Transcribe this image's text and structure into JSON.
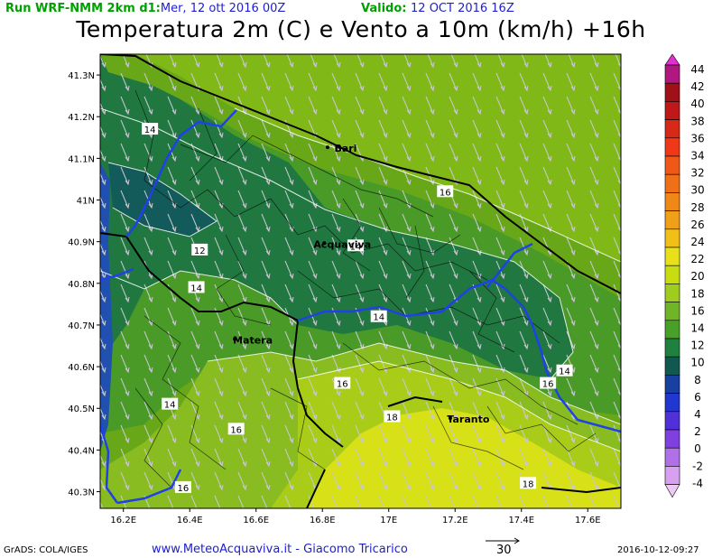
{
  "header": {
    "run_label": "Run WRF-NMM 2km d1:",
    "run_date": "Mer, 12 ott 2016 00Z",
    "valid_label": "Valido:",
    "valid_date": "12 OCT 2016 16Z"
  },
  "title": "Temperatura 2m (C) e Vento a 10m (km/h) +16h",
  "axes": {
    "x_ticks": [
      "16.2E",
      "16.4E",
      "16.6E",
      "16.8E",
      "17E",
      "17.2E",
      "17.4E",
      "17.6E"
    ],
    "y_ticks": [
      "41.3N",
      "41.2N",
      "41.1N",
      "41N",
      "40.9N",
      "40.8N",
      "40.7N",
      "40.6N",
      "40.5N",
      "40.4N",
      "40.3N"
    ]
  },
  "colorbar": {
    "labels": [
      "44",
      "42",
      "40",
      "38",
      "36",
      "34",
      "32",
      "30",
      "28",
      "26",
      "24",
      "22",
      "20",
      "18",
      "16",
      "14",
      "12",
      "10",
      "8",
      "6",
      "4",
      "2",
      "0",
      "-2",
      "-4"
    ],
    "colors": [
      "#e030d0",
      "#b01880",
      "#a01018",
      "#c01818",
      "#d82818",
      "#f03818",
      "#f05818",
      "#f07018",
      "#f08818",
      "#f0a018",
      "#f0c018",
      "#e8e018",
      "#c8dc10",
      "#a0cc20",
      "#70b428",
      "#48a028",
      "#208040",
      "#105850",
      "#1840a0",
      "#2038d0",
      "#5030d8",
      "#8040e0",
      "#b070e8",
      "#d8a0f0",
      "#f0c8f8"
    ]
  },
  "chart_data": {
    "type": "heatmap",
    "title": "Temperatura 2m (C) e Vento a 10m (km/h) +16h",
    "xlabel": "",
    "ylabel": "",
    "xlim": [
      16.13,
      17.7
    ],
    "ylim": [
      40.26,
      41.35
    ],
    "contour_labels": [
      {
        "value": "14",
        "lon": 16.28,
        "lat": 41.17
      },
      {
        "value": "12",
        "lon": 16.43,
        "lat": 40.88
      },
      {
        "value": "14",
        "lon": 16.42,
        "lat": 40.79
      },
      {
        "value": "14",
        "lon": 16.9,
        "lat": 40.89
      },
      {
        "value": "14",
        "lon": 16.97,
        "lat": 40.72
      },
      {
        "value": "16",
        "lon": 17.17,
        "lat": 41.02
      },
      {
        "value": "16",
        "lon": 16.86,
        "lat": 40.56
      },
      {
        "value": "14",
        "lon": 16.34,
        "lat": 40.51
      },
      {
        "value": "16",
        "lon": 16.54,
        "lat": 40.45
      },
      {
        "value": "14",
        "lon": 17.53,
        "lat": 40.59
      },
      {
        "value": "16",
        "lon": 17.48,
        "lat": 40.56
      },
      {
        "value": "18",
        "lon": 17.01,
        "lat": 40.48
      },
      {
        "value": "16",
        "lon": 16.38,
        "lat": 40.31
      },
      {
        "value": "18",
        "lon": 17.42,
        "lat": 40.32
      }
    ],
    "cities": [
      {
        "name": "Bari",
        "lon": 16.87,
        "lat": 41.12
      },
      {
        "name": "Acquaviva",
        "lon": 16.86,
        "lat": 40.89
      },
      {
        "name": "Matera",
        "lon": 16.59,
        "lat": 40.66
      },
      {
        "name": "Taranto",
        "lon": 17.24,
        "lat": 40.47
      }
    ],
    "wind_vector_reference": "30"
  },
  "footer": {
    "grads": "GrADS: COLA/IGES",
    "site": "www.MeteoAcquaviva.it  -  Giacomo Tricarico",
    "vector_ref": "30",
    "timestamp": "2016-10-12-09:27"
  }
}
